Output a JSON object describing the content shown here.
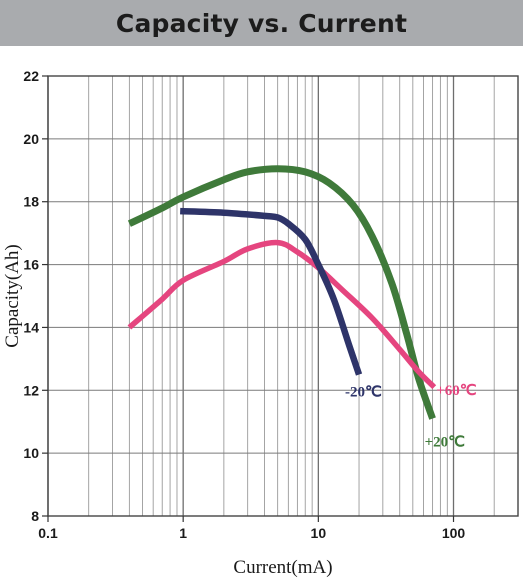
{
  "chart_data": {
    "type": "line",
    "title": "Capacity vs. Current",
    "xlabel": "Current(mA)",
    "ylabel": "Capacity(Ah)",
    "x_scale": "log",
    "xlim": [
      0.1,
      300
    ],
    "ylim": [
      8,
      22
    ],
    "x_ticks": [
      0.1,
      1,
      10,
      100
    ],
    "x_tick_labels": [
      "0.1",
      "1",
      "10",
      "100"
    ],
    "y_ticks": [
      8,
      10,
      12,
      14,
      16,
      18,
      20,
      22
    ],
    "y_tick_labels": [
      "8",
      "10",
      "12",
      "14",
      "16",
      "18",
      "20",
      "22"
    ],
    "grid": true,
    "legend": "inline labels at line ends",
    "series": [
      {
        "name": "+20℃",
        "color": "#3f7a3a",
        "points": [
          [
            0.4,
            17.3
          ],
          [
            0.7,
            17.8
          ],
          [
            1,
            18.15
          ],
          [
            2,
            18.7
          ],
          [
            3,
            18.95
          ],
          [
            5,
            19.05
          ],
          [
            8,
            18.95
          ],
          [
            12,
            18.6
          ],
          [
            18,
            17.9
          ],
          [
            25,
            16.9
          ],
          [
            35,
            15.4
          ],
          [
            45,
            13.8
          ],
          [
            55,
            12.4
          ],
          [
            70,
            11.1
          ]
        ]
      },
      {
        "name": "-20℃",
        "color": "#2e3469",
        "points": [
          [
            0.95,
            17.7
          ],
          [
            2,
            17.65
          ],
          [
            4,
            17.55
          ],
          [
            5,
            17.5
          ],
          [
            6,
            17.3
          ],
          [
            8,
            16.8
          ],
          [
            10,
            16.0
          ],
          [
            13,
            14.9
          ],
          [
            17,
            13.4
          ],
          [
            20,
            12.5
          ]
        ]
      },
      {
        "name": "+60℃",
        "color": "#e5457f",
        "points": [
          [
            0.4,
            14.0
          ],
          [
            0.7,
            14.9
          ],
          [
            1,
            15.5
          ],
          [
            2,
            16.1
          ],
          [
            3,
            16.5
          ],
          [
            5,
            16.7
          ],
          [
            7,
            16.4
          ],
          [
            10,
            15.9
          ],
          [
            15,
            15.2
          ],
          [
            25,
            14.3
          ],
          [
            40,
            13.3
          ],
          [
            55,
            12.6
          ],
          [
            72,
            12.1
          ]
        ]
      }
    ],
    "annotations": [
      "-20℃",
      "+60℃",
      "+20℃"
    ]
  }
}
